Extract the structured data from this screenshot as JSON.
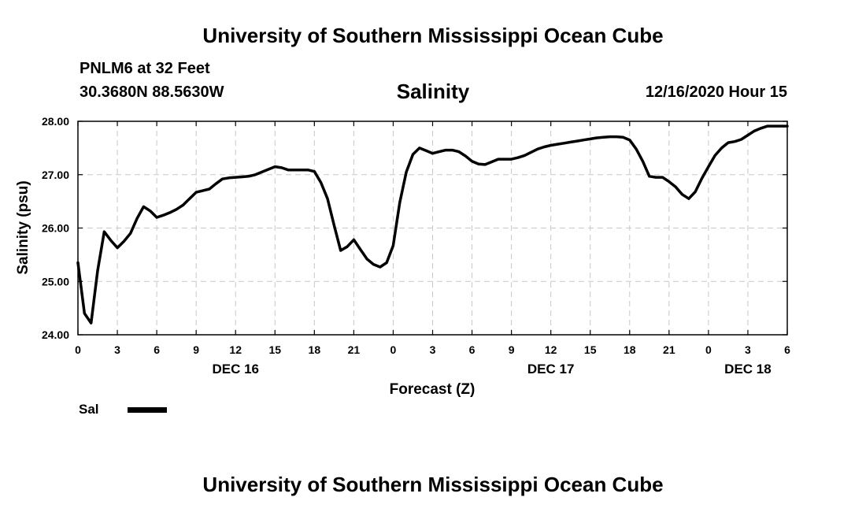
{
  "header": {
    "title": "University of Southern Mississippi Ocean Cube",
    "station": "PNLM6 at 32 Feet",
    "coords": "30.3680N 88.5630W",
    "datetime": "12/16/2020 Hour 15",
    "footer_title": "University of Southern Mississippi Ocean Cube"
  },
  "chart_data": {
    "type": "line",
    "title": "Salinity",
    "xlabel": "Forecast (Z)",
    "ylabel": "Salinity (psu)",
    "ylim": [
      24.0,
      28.0
    ],
    "xlim": [
      0,
      54
    ],
    "x_unit": "hours from 00Z Dec 16",
    "y_ticks": [
      "24.00",
      "25.00",
      "26.00",
      "27.00",
      "28.00"
    ],
    "x_ticks": [
      {
        "h": 0,
        "label": "0"
      },
      {
        "h": 3,
        "label": "3"
      },
      {
        "h": 6,
        "label": "6"
      },
      {
        "h": 9,
        "label": "9"
      },
      {
        "h": 12,
        "label": "12"
      },
      {
        "h": 15,
        "label": "15"
      },
      {
        "h": 18,
        "label": "18"
      },
      {
        "h": 21,
        "label": "21"
      },
      {
        "h": 24,
        "label": "0"
      },
      {
        "h": 27,
        "label": "3"
      },
      {
        "h": 30,
        "label": "6"
      },
      {
        "h": 33,
        "label": "9"
      },
      {
        "h": 36,
        "label": "12"
      },
      {
        "h": 39,
        "label": "15"
      },
      {
        "h": 42,
        "label": "18"
      },
      {
        "h": 45,
        "label": "21"
      },
      {
        "h": 48,
        "label": "0"
      },
      {
        "h": 51,
        "label": "3"
      },
      {
        "h": 54,
        "label": "6"
      }
    ],
    "day_labels": [
      {
        "h": 12,
        "label": "DEC 16"
      },
      {
        "h": 36,
        "label": "DEC 17"
      },
      {
        "h": 51,
        "label": "DEC 18"
      }
    ],
    "legend": [
      {
        "name": "Sal",
        "color": "#000000"
      }
    ],
    "series": [
      {
        "name": "Sal",
        "x": [
          0,
          0.5,
          1,
          1.5,
          2,
          2.5,
          3,
          3.5,
          4,
          4.5,
          5,
          5.5,
          6,
          6.5,
          7,
          7.5,
          8,
          8.5,
          9,
          9.5,
          10,
          10.5,
          11,
          11.5,
          12,
          12.5,
          13,
          13.5,
          14,
          14.5,
          15,
          15.5,
          16,
          16.5,
          17,
          17.5,
          18,
          18.5,
          19,
          19.5,
          20,
          20.5,
          21,
          21.5,
          22,
          22.5,
          23,
          23.5,
          24,
          24.5,
          25,
          25.5,
          26,
          26.5,
          27,
          27.5,
          28,
          28.5,
          29,
          29.5,
          30,
          30.5,
          31,
          31.5,
          32,
          32.5,
          33,
          33.5,
          34,
          34.5,
          35,
          35.5,
          36,
          36.5,
          37,
          37.5,
          38,
          38.5,
          39,
          39.5,
          40,
          40.5,
          41,
          41.5,
          42,
          42.5,
          43,
          43.5,
          44,
          44.5,
          45,
          45.5,
          46,
          46.5,
          47,
          47.5,
          48,
          48.5,
          49,
          49.5,
          50,
          50.5,
          51,
          51.5,
          52,
          52.5,
          53,
          53.5,
          54
        ],
        "values": [
          25.35,
          24.4,
          24.22,
          25.2,
          25.93,
          25.77,
          25.63,
          25.75,
          25.9,
          26.18,
          26.4,
          26.32,
          26.2,
          26.24,
          26.29,
          26.35,
          26.43,
          26.55,
          26.67,
          26.7,
          26.73,
          26.83,
          26.92,
          26.94,
          26.95,
          26.96,
          26.97,
          27.0,
          27.05,
          27.1,
          27.15,
          27.13,
          27.09,
          27.09,
          27.09,
          27.09,
          27.06,
          26.85,
          26.55,
          26.05,
          25.58,
          25.65,
          25.78,
          25.6,
          25.42,
          25.32,
          25.27,
          25.35,
          25.67,
          26.48,
          27.05,
          27.38,
          27.5,
          27.45,
          27.4,
          27.43,
          27.46,
          27.46,
          27.43,
          27.35,
          27.25,
          27.2,
          27.19,
          27.24,
          27.29,
          27.29,
          27.29,
          27.32,
          27.36,
          27.42,
          27.48,
          27.52,
          27.55,
          27.57,
          27.59,
          27.61,
          27.63,
          27.65,
          27.67,
          27.69,
          27.7,
          27.71,
          27.71,
          27.7,
          27.65,
          27.48,
          27.25,
          26.97,
          26.95,
          26.95,
          26.87,
          26.77,
          26.63,
          26.55,
          26.68,
          26.93,
          27.15,
          27.36,
          27.5,
          27.6,
          27.62,
          27.66,
          27.74,
          27.82,
          27.87,
          27.91,
          27.91,
          27.91,
          27.91
        ]
      }
    ]
  }
}
